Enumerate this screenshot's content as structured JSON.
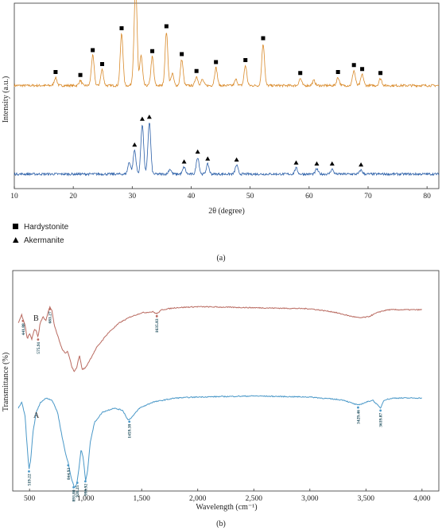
{
  "colors": {
    "orange": "#d98a2a",
    "blue": "#2b5fa8",
    "red": "#b96a60",
    "lightblue": "#4a98c8",
    "marker": "#000000",
    "peakLabel": "#1b4b5a"
  },
  "chart_data": [
    {
      "type": "line",
      "panel": "(a)",
      "xlabel": "2θ (degree)",
      "ylabel": "Intensity (a.u.)",
      "xlim": [
        10,
        82
      ],
      "xticks": [
        10,
        20,
        30,
        40,
        50,
        60,
        70,
        80
      ],
      "legend": [
        {
          "symbol": "square",
          "label": "Hardystonite"
        },
        {
          "symbol": "triangle",
          "label": "Akermanite"
        }
      ],
      "series": [
        {
          "baseline": 0.14,
          "noise": 0.012,
          "peaks": [
            [
              17.0,
              0.08
            ],
            [
              21.2,
              0.05
            ],
            [
              23.3,
              0.3
            ],
            [
              24.9,
              0.16
            ],
            [
              28.2,
              0.52
            ],
            [
              30.3,
              0.16
            ],
            [
              30.6,
              0.92
            ],
            [
              31.5,
              0.3
            ],
            [
              33.4,
              0.29
            ],
            [
              35.8,
              0.54
            ],
            [
              36.8,
              0.12
            ],
            [
              38.4,
              0.26
            ],
            [
              40.9,
              0.09
            ],
            [
              41.9,
              0.06
            ],
            [
              44.2,
              0.18
            ],
            [
              47.6,
              0.06
            ],
            [
              49.2,
              0.2
            ],
            [
              52.2,
              0.42
            ],
            [
              58.5,
              0.07
            ],
            [
              60.8,
              0.05
            ],
            [
              64.9,
              0.08
            ],
            [
              67.6,
              0.15
            ],
            [
              69.0,
              0.11
            ],
            [
              72.1,
              0.07
            ]
          ],
          "markers": {
            "symbol": "square",
            "x": [
              17.0,
              21.2,
              23.3,
              24.9,
              28.2,
              30.6,
              33.4,
              35.8,
              38.4,
              40.9,
              44.2,
              49.2,
              52.2,
              58.5,
              64.9,
              67.6,
              69.0,
              72.1
            ]
          }
        },
        {
          "baseline": 0.09,
          "noise": 0.012,
          "peaks": [
            [
              29.5,
              0.12
            ],
            [
              30.4,
              0.24
            ],
            [
              31.7,
              0.5
            ],
            [
              32.9,
              0.52
            ],
            [
              36.4,
              0.05
            ],
            [
              38.8,
              0.07
            ],
            [
              41.1,
              0.17
            ],
            [
              42.8,
              0.1
            ],
            [
              47.7,
              0.09
            ],
            [
              57.8,
              0.06
            ],
            [
              61.3,
              0.05
            ],
            [
              63.9,
              0.05
            ],
            [
              68.8,
              0.04
            ]
          ],
          "markers": {
            "symbol": "triangle",
            "x": [
              30.4,
              31.7,
              32.9,
              38.8,
              41.1,
              42.8,
              47.7,
              57.8,
              61.3,
              63.9,
              68.8
            ]
          }
        }
      ]
    },
    {
      "type": "line",
      "panel": "(b)",
      "xlabel": "Wavelength (cm⁻¹)",
      "ylabel": "Transmittance (%)",
      "xlim": [
        350,
        4150
      ],
      "xticks": [
        500,
        1000,
        1500,
        2000,
        2500,
        3000,
        3500,
        4000
      ],
      "xtick_labels": [
        "500",
        "1,000",
        "1,500",
        "2,000",
        "2,500",
        "3,000",
        "3,500",
        "4,000"
      ],
      "series": [
        {
          "name": "B",
          "points": [
            [
              400,
              0.84
            ],
            [
              430,
              0.88
            ],
            [
              460,
              0.83
            ],
            [
              480,
              0.76
            ],
            [
              500,
              0.79
            ],
            [
              520,
              0.76
            ],
            [
              545,
              0.81
            ],
            [
              560,
              0.8
            ],
            [
              576,
              0.77
            ],
            [
              595,
              0.84
            ],
            [
              620,
              0.87
            ],
            [
              645,
              0.85
            ],
            [
              665,
              0.89
            ],
            [
              681,
              0.92
            ],
            [
              700,
              0.9
            ],
            [
              720,
              0.83
            ],
            [
              750,
              0.78
            ],
            [
              790,
              0.71
            ],
            [
              820,
              0.69
            ],
            [
              840,
              0.7
            ],
            [
              860,
              0.66
            ],
            [
              880,
              0.62
            ],
            [
              900,
              0.6
            ],
            [
              920,
              0.62
            ],
            [
              945,
              0.68
            ],
            [
              970,
              0.61
            ],
            [
              1000,
              0.62
            ],
            [
              1050,
              0.67
            ],
            [
              1100,
              0.72
            ],
            [
              1200,
              0.79
            ],
            [
              1300,
              0.84
            ],
            [
              1400,
              0.87
            ],
            [
              1500,
              0.89
            ],
            [
              1600,
              0.895
            ],
            [
              1635,
              0.885
            ],
            [
              1680,
              0.905
            ],
            [
              1800,
              0.915
            ],
            [
              2000,
              0.92
            ],
            [
              2500,
              0.915
            ],
            [
              3000,
              0.91
            ],
            [
              3200,
              0.895
            ],
            [
              3350,
              0.875
            ],
            [
              3440,
              0.865
            ],
            [
              3520,
              0.87
            ],
            [
              3580,
              0.885
            ],
            [
              3620,
              0.895
            ],
            [
              3700,
              0.905
            ],
            [
              4000,
              0.905
            ]
          ],
          "labels": [
            [
              "441.88",
              441
            ],
            [
              "575.91",
              576
            ],
            [
              "681.27",
              681
            ],
            [
              "1635.83",
              1635
            ]
          ]
        },
        {
          "name": "A",
          "points": [
            [
              400,
              0.42
            ],
            [
              430,
              0.45
            ],
            [
              460,
              0.38
            ],
            [
              480,
              0.22
            ],
            [
              495,
              0.12
            ],
            [
              510,
              0.16
            ],
            [
              530,
              0.3
            ],
            [
              560,
              0.4
            ],
            [
              600,
              0.45
            ],
            [
              650,
              0.47
            ],
            [
              700,
              0.46
            ],
            [
              750,
              0.4
            ],
            [
              790,
              0.28
            ],
            [
              820,
              0.2
            ],
            [
              845,
              0.15
            ],
            [
              870,
              0.08
            ],
            [
              900,
              0.03
            ],
            [
              920,
              0.04
            ],
            [
              940,
              0.12
            ],
            [
              960,
              0.22
            ],
            [
              980,
              0.17
            ],
            [
              1000,
              0.06
            ],
            [
              1020,
              0.12
            ],
            [
              1040,
              0.25
            ],
            [
              1080,
              0.35
            ],
            [
              1150,
              0.4
            ],
            [
              1250,
              0.42
            ],
            [
              1330,
              0.41
            ],
            [
              1380,
              0.36
            ],
            [
              1420,
              0.38
            ],
            [
              1480,
              0.42
            ],
            [
              1600,
              0.45
            ],
            [
              1800,
              0.47
            ],
            [
              2000,
              0.475
            ],
            [
              2500,
              0.48
            ],
            [
              3000,
              0.475
            ],
            [
              3300,
              0.46
            ],
            [
              3400,
              0.44
            ],
            [
              3430,
              0.435
            ],
            [
              3480,
              0.445
            ],
            [
              3560,
              0.46
            ],
            [
              3630,
              0.42
            ],
            [
              3660,
              0.46
            ],
            [
              3750,
              0.47
            ],
            [
              4000,
              0.47
            ]
          ],
          "labels": [
            [
              "519.22",
              495
            ],
            [
              "844.93",
              845
            ],
            [
              "893.80",
              893
            ],
            [
              "926.25",
              926
            ],
            [
              "998.92",
              998
            ],
            [
              "1459.38",
              1390
            ],
            [
              "3429.46",
              3430
            ],
            [
              "3639.87",
              3630
            ]
          ]
        }
      ]
    }
  ]
}
